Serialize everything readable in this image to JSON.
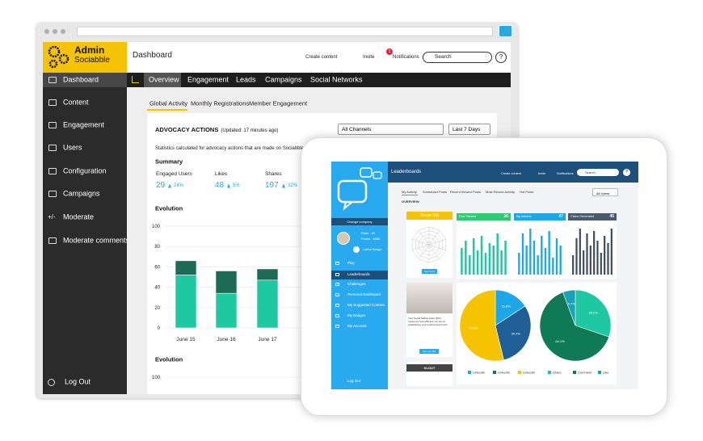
{
  "app": {
    "brand": {
      "title": "Admin",
      "subtitle": "Sociabble"
    },
    "page_title": "Dashboard",
    "toolbar": {
      "create": "Create content",
      "invite": "Invite",
      "notifications": "Notifications",
      "notification_count": "1",
      "search": "Search",
      "help": "?"
    },
    "sidebar": {
      "items": [
        "Dashboard",
        "Content",
        "Engagement",
        "Users",
        "Configuration",
        "Campaigns",
        "Moderate",
        "Moderate comments"
      ],
      "moderate_icon": "+/-",
      "logout": "Log Out"
    },
    "tabs": [
      "Overview",
      "Engagement",
      "Leads",
      "Campaigns",
      "Social Networks"
    ],
    "subtabs": [
      "Global Activity",
      "Monthly Registrations",
      "Member Engagement"
    ],
    "advocacy": {
      "title": "ADVOCACY ACTIONS",
      "updated": "(Updated: 17 minutes ago)",
      "channel": "All Channels",
      "period": "Last 7 Days",
      "description": "Statistics calculated for advocacy actions that are made on Sociabble",
      "summary_title": "Summary",
      "stats": [
        {
          "label": "Engaged Users",
          "value": 29,
          "change": "24%"
        },
        {
          "label": "Likes",
          "value": 48,
          "change": "5%"
        },
        {
          "label": "Shares",
          "value": 197,
          "change": "32%"
        }
      ]
    },
    "evolution": {
      "title": "Evolution",
      "categories": [
        "June 15",
        "June 16",
        "June 17"
      ],
      "series": [
        {
          "color": "#1ec8a0",
          "values": [
            52,
            34,
            47
          ]
        },
        {
          "color": "#1e6b55",
          "values": [
            14,
            22,
            11
          ]
        }
      ],
      "ylim": [
        0,
        100
      ],
      "yticks": [
        0,
        20,
        40,
        60,
        80,
        100
      ]
    },
    "evolution_2": {
      "title": "Evolution",
      "yticks": [
        100
      ]
    }
  },
  "tablet": {
    "header": "Leaderboards",
    "toolbar": {
      "create": "Create content",
      "invite": "Invite",
      "notifications": "Notifications",
      "search": "Search",
      "help": "?"
    },
    "subtabs": [
      "My Activity",
      "Scheduled Posts",
      "Recent Viewed Posts",
      "Most Recent Activity",
      "Hot Posts"
    ],
    "filter": "All Users",
    "overview": "OVERVIEW",
    "sidebar": {
      "change_company": "Change company",
      "rank": "Rank : #3",
      "points": "Points : #586",
      "badge": "Latest Badge",
      "items": [
        "Play",
        "Leaderboards",
        "Challenges",
        "Personal Dashboard",
        "My Suggested Content",
        "My Badges",
        "My Account"
      ],
      "logout": "Log Out"
    },
    "ssi_card": {
      "title": "Social SSI",
      "button": "See more"
    },
    "linkedin_card": {
      "text": "Your Social Selling Index (SSI) measures how effective you are at establishing your professional brand.",
      "button": "See my SSI"
    },
    "klout_card": {
      "title": "KLOUT"
    },
    "stats": [
      {
        "label": "Post Viewed",
        "value": 26,
        "color": "#2ecc71",
        "bars": [
          55,
          70,
          40,
          75,
          50,
          80,
          45,
          65,
          60,
          85,
          50,
          70
        ],
        "bar_color": "#1ec8a0"
      },
      {
        "label": "My Actions",
        "value": 47,
        "color": "#1ba7e8",
        "bars": [
          45,
          85,
          60,
          95,
          70,
          40,
          80,
          55,
          90,
          35,
          75,
          60
        ],
        "bar_color": "#1ba7e8"
      },
      {
        "label": "Clicks Generated",
        "value": 45,
        "color": "#4a5a6e",
        "bars": [
          40,
          75,
          95,
          50,
          85,
          60,
          90,
          70,
          45,
          80,
          65,
          95
        ],
        "bar_color": "#3b4a5c"
      }
    ],
    "bars_ylim": [
      0,
      100
    ],
    "pies": [
      {
        "slices": [
          {
            "label": "LinkedIn",
            "value": 15.8,
            "value_label": "15.8%",
            "color": "#1ba7e8"
          },
          {
            "label": "LinkedIn",
            "value": 30.4,
            "value_label": "30.4%",
            "color": "#1f5f96"
          },
          {
            "label": "LinkedIn",
            "value": 53.8,
            "value_label": "53.8%",
            "color": "#f6c300"
          }
        ]
      },
      {
        "slices": [
          {
            "label": "Share",
            "value": 30.2,
            "value_label": "30.2%",
            "color": "#1ec8a0"
          },
          {
            "label": "Comment",
            "value": 64.1,
            "value_label": "64.1%",
            "color": "#0f7a55"
          },
          {
            "label": "Like",
            "value": 5.7,
            "value_label": "5.7%",
            "color": "#1aa3b8"
          }
        ]
      }
    ]
  }
}
